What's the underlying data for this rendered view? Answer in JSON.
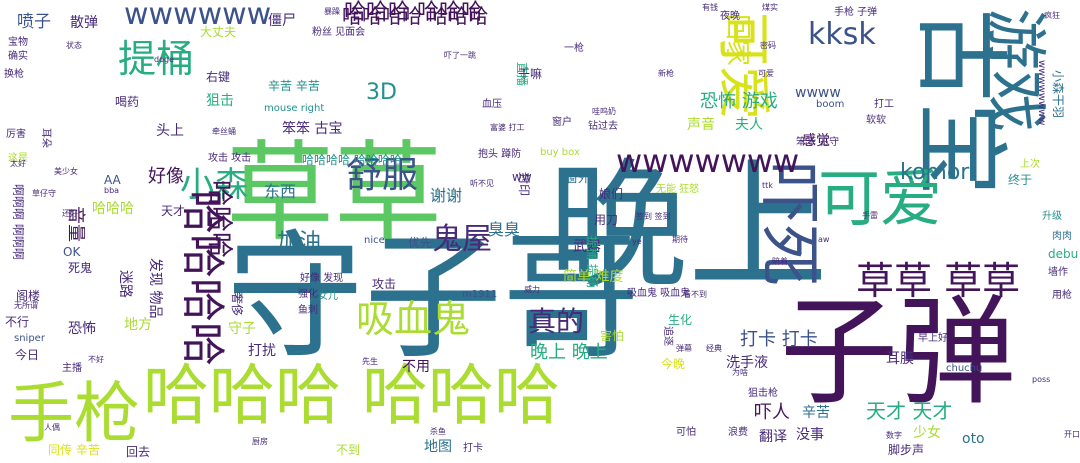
{
  "palette": {
    "dark_purple": "#44145a",
    "indigo": "#472a7a",
    "slate_blue": "#3b528b",
    "steel_blue": "#2c728e",
    "teal": "#21918c",
    "sea_green": "#27ad81",
    "green": "#5cc863",
    "lime": "#aadc32",
    "yellow": "#d8e219",
    "gold": "#fde725"
  },
  "words": [
    {
      "text": "晚上",
      "color": "#2c728e"
    },
    {
      "text": "守子哥",
      "color": "#2c728e"
    },
    {
      "text": "草草",
      "color": "#5cc863"
    },
    {
      "text": "子弹",
      "color": "#44145a"
    },
    {
      "text": "哈哈哈 哈哈哈",
      "color": "#aadc32"
    },
    {
      "text": "手枪",
      "color": "#aadc32"
    },
    {
      "text": "古宝",
      "color": "#2c728e"
    },
    {
      "text": "游戏",
      "color": "#2c728e"
    },
    {
      "text": "可爱",
      "color": "#27ad81"
    },
    {
      "text": "吓死",
      "color": "#3b528b"
    },
    {
      "text": "草草 草草",
      "color": "#44145a"
    },
    {
      "text": "吸血鬼",
      "color": "#aadc32"
    },
    {
      "text": "舒服",
      "color": "#3b528b"
    },
    {
      "text": "提桶",
      "color": "#27ad81"
    },
    {
      "text": "小森",
      "color": "#27ad81"
    },
    {
      "text": "wwwwww",
      "color": "#3b528b"
    },
    {
      "text": "鬼屋",
      "color": "#472a7a"
    },
    {
      "text": "可爱",
      "color": "#d8e219"
    },
    {
      "text": "哈哈哈 哈哈哈",
      "color": "#44145a"
    },
    {
      "text": "kksk",
      "color": "#3b528b"
    },
    {
      "text": "哈哈哈",
      "color": "#44145a"
    },
    {
      "text": "真的",
      "color": "#472a7a"
    },
    {
      "text": "哈哈哈哈 哈哈哈",
      "color": "#44145a"
    },
    {
      "text": "komori",
      "color": "#2c728e"
    },
    {
      "text": "恐怖 游戏",
      "color": "#27ad81"
    },
    {
      "text": "吓人",
      "color": "#44145a"
    },
    {
      "text": "天才 天才",
      "color": "#27ad81"
    },
    {
      "text": "晚上 晚上",
      "color": "#27ad81"
    },
    {
      "text": "打卡 打卡",
      "color": "#3b528b"
    },
    {
      "text": "辛苦 辛苦",
      "color": "#21918c"
    },
    {
      "text": "3D",
      "color": "#21918c"
    },
    {
      "text": "加油",
      "color": "#2c728e"
    },
    {
      "text": "喷子",
      "color": "#3b528b"
    },
    {
      "text": "散弹",
      "color": "#472a7a"
    },
    {
      "text": "僵尸",
      "color": "#472a7a"
    },
    {
      "text": "好像",
      "color": "#44145a"
    },
    {
      "text": "东西",
      "color": "#2c728e"
    },
    {
      "text": "谢谢",
      "color": "#2c728e"
    },
    {
      "text": "臭臭",
      "color": "#2c728e"
    },
    {
      "text": "音量",
      "color": "#44145a"
    },
    {
      "text": "狙击",
      "color": "#27ad81"
    },
    {
      "text": "头上",
      "color": "#472a7a"
    },
    {
      "text": "笨笨 古宝",
      "color": "#472a7a"
    },
    {
      "text": "感觉",
      "color": "#44145a"
    },
    {
      "text": "夫人",
      "color": "#27ad81"
    },
    {
      "text": "声音",
      "color": "#aadc32"
    },
    {
      "text": "武器",
      "color": "#472a7a"
    },
    {
      "text": "简单 难度",
      "color": "#aadc32"
    },
    {
      "text": "不用",
      "color": "#44145a"
    },
    {
      "text": "洗手液",
      "color": "#472a7a"
    },
    {
      "text": "耳膜",
      "color": "#472a7a"
    },
    {
      "text": "少女",
      "color": "#aadc32"
    },
    {
      "text": "oto",
      "color": "#2c728e"
    },
    {
      "text": "辛苦",
      "color": "#2c728e"
    },
    {
      "text": "翻译",
      "color": "#472a7a"
    },
    {
      "text": "没事",
      "color": "#472a7a"
    },
    {
      "text": "终于",
      "color": "#21918c"
    },
    {
      "text": "上次",
      "color": "#aadc32"
    },
    {
      "text": "升级",
      "color": "#21918c"
    },
    {
      "text": "肉肉",
      "color": "#2c728e"
    },
    {
      "text": "debu",
      "color": "#27ad81"
    },
    {
      "text": "墙作",
      "color": "#472a7a"
    },
    {
      "text": "用枪",
      "color": "#472a7a"
    },
    {
      "text": "地方",
      "color": "#aadc32"
    },
    {
      "text": "守子",
      "color": "#aadc32"
    },
    {
      "text": "打扰",
      "color": "#472a7a"
    },
    {
      "text": "恐怖",
      "color": "#472a7a"
    },
    {
      "text": "不行",
      "color": "#472a7a"
    },
    {
      "text": "今日",
      "color": "#472a7a"
    },
    {
      "text": "sniper",
      "color": "#3b528b"
    },
    {
      "text": "主播",
      "color": "#472a7a"
    },
    {
      "text": "同传 辛苦",
      "color": "#d8e219"
    },
    {
      "text": "回去",
      "color": "#472a7a"
    },
    {
      "text": "地图",
      "color": "#2c728e"
    },
    {
      "text": "不到",
      "color": "#aadc32"
    },
    {
      "text": "打卡",
      "color": "#472a7a"
    },
    {
      "text": "脚步声",
      "color": "#472a7a"
    },
    {
      "text": "天才",
      "color": "#472a7a"
    },
    {
      "text": "AA",
      "color": "#3b528b"
    },
    {
      "text": "哈哈哈",
      "color": "#aadc32"
    },
    {
      "text": "OK",
      "color": "#3b528b"
    },
    {
      "text": "死鬼",
      "color": "#472a7a"
    },
    {
      "text": "阁楼",
      "color": "#472a7a"
    },
    {
      "text": "迷路",
      "color": "#472a7a"
    },
    {
      "text": "发现 物品",
      "color": "#472a7a"
    },
    {
      "text": "优先",
      "color": "#3b528b"
    },
    {
      "text": "窗外",
      "color": "#2c728e"
    },
    {
      "text": "攻击",
      "color": "#472a7a"
    },
    {
      "text": "女儿",
      "color": "#21918c"
    },
    {
      "text": "生化",
      "color": "#27ad81"
    },
    {
      "text": "害怕",
      "color": "#aadc32"
    },
    {
      "text": "今晚",
      "color": "#d8e219"
    },
    {
      "text": "狙击枪",
      "color": "#472a7a"
    },
    {
      "text": "喝药",
      "color": "#472a7a"
    },
    {
      "text": "右键",
      "color": "#472a7a"
    },
    {
      "text": "大丈夫",
      "color": "#aadc32"
    },
    {
      "text": "粉丝 见面会",
      "color": "#472a7a"
    },
    {
      "text": "回家",
      "color": "#d8e219"
    },
    {
      "text": "直播",
      "color": "#27ad81"
    },
    {
      "text": "血压",
      "color": "#472a7a"
    },
    {
      "text": "wwww",
      "color": "#3b528b"
    },
    {
      "text": "ww",
      "color": "#472a7a"
    },
    {
      "text": "吸血鬼 吸血鬼",
      "color": "#472a7a"
    },
    {
      "text": "提桶 提桶",
      "color": "#27ad81"
    },
    {
      "text": "用刀",
      "color": "#472a7a"
    },
    {
      "text": "娘们",
      "color": "#472a7a"
    },
    {
      "text": "钻过去",
      "color": "#472a7a"
    },
    {
      "text": "抱头 蹲防",
      "color": "#472a7a"
    },
    {
      "text": "宝物",
      "color": "#472a7a"
    },
    {
      "text": "确实",
      "color": "#472a7a"
    },
    {
      "text": "换枪",
      "color": "#472a7a"
    },
    {
      "text": "厉害",
      "color": "#472a7a"
    },
    {
      "text": "耳朵",
      "color": "#472a7a"
    },
    {
      "text": "这是",
      "color": "#aadc32"
    },
    {
      "text": "啊啊啊 啊啊啊",
      "color": "#472a7a"
    },
    {
      "text": "mouse right",
      "color": "#21918c"
    },
    {
      "text": "攻击 攻击",
      "color": "#472a7a"
    },
    {
      "text": "哈哈哈哈 哈哈哈哈",
      "color": "#21918c"
    },
    {
      "text": "打工",
      "color": "#472a7a"
    },
    {
      "text": "软软",
      "color": "#472a7a"
    },
    {
      "text": "早上好",
      "color": "#472a7a"
    },
    {
      "text": "可怕",
      "color": "#472a7a"
    },
    {
      "text": "浪费",
      "color": "#472a7a"
    },
    {
      "text": "强化",
      "color": "#472a7a"
    },
    {
      "text": "鱼刺",
      "color": "#472a7a"
    },
    {
      "text": "干嘛",
      "color": "#472a7a"
    },
    {
      "text": "窗户",
      "color": "#472a7a"
    },
    {
      "text": "一枪",
      "color": "#472a7a"
    },
    {
      "text": "夜晚",
      "color": "#472a7a"
    },
    {
      "text": "m1911",
      "color": "#3b528b"
    },
    {
      "text": "chuchu",
      "color": "#3b528b"
    },
    {
      "text": "boom",
      "color": "#3b528b"
    },
    {
      "text": "nice",
      "color": "#3b528b"
    },
    {
      "text": "wwwwwwww",
      "color": "#472a7a"
    },
    {
      "text": "小森干羽",
      "color": "#2c728e"
    },
    {
      "text": "手枪 子弹",
      "color": "#472a7a"
    },
    {
      "text": "笨笨 古守",
      "color": "#472a7a"
    },
    {
      "text": "有钱",
      "color": "#472a7a"
    },
    {
      "text": "煤实",
      "color": "#472a7a"
    },
    {
      "text": "疯狂",
      "color": "#472a7a"
    },
    {
      "text": "暴躁",
      "color": "#472a7a"
    },
    {
      "text": "doge",
      "color": "#472a7a"
    },
    {
      "text": "吓了一跳",
      "color": "#472a7a"
    },
    {
      "text": "哇呜奶",
      "color": "#472a7a"
    },
    {
      "text": "新枪",
      "color": "#472a7a"
    },
    {
      "text": "可爱",
      "color": "#472a7a"
    },
    {
      "text": "密码",
      "color": "#472a7a"
    },
    {
      "text": "无能 狂怒",
      "color": "#aadc32"
    },
    {
      "text": "签到 签到",
      "color": "#472a7a"
    },
    {
      "text": "期待",
      "color": "#472a7a"
    },
    {
      "text": "威力",
      "color": "#472a7a"
    },
    {
      "text": "看不到",
      "color": "#472a7a"
    },
    {
      "text": "弹幕",
      "color": "#472a7a"
    },
    {
      "text": "经典",
      "color": "#472a7a"
    },
    {
      "text": "为啥",
      "color": "#472a7a"
    },
    {
      "text": "数字",
      "color": "#472a7a"
    },
    {
      "text": "开口",
      "color": "#472a7a"
    },
    {
      "text": "buy box",
      "color": "#aadc32"
    },
    {
      "text": "bba",
      "color": "#472a7a"
    },
    {
      "text": "听不见",
      "color": "#472a7a"
    },
    {
      "text": "富婆 打工",
      "color": "#472a7a"
    },
    {
      "text": "牵丝蛹",
      "color": "#472a7a"
    },
    {
      "text": "状态",
      "color": "#472a7a"
    },
    {
      "text": "人偶",
      "color": "#472a7a"
    },
    {
      "text": "不好",
      "color": "#472a7a"
    },
    {
      "text": "先生",
      "color": "#472a7a"
    },
    {
      "text": "无所谓",
      "color": "#472a7a"
    },
    {
      "text": "还好",
      "color": "#472a7a"
    },
    {
      "text": "太好",
      "color": "#472a7a"
    },
    {
      "text": "美少女",
      "color": "#472a7a"
    },
    {
      "text": "草仔守",
      "color": "#472a7a"
    },
    {
      "text": "封印",
      "color": "#472a7a"
    },
    {
      "text": "追逐",
      "color": "#472a7a"
    },
    {
      "text": "厨房",
      "color": "#472a7a"
    },
    {
      "text": "杀鱼",
      "color": "#472a7a"
    },
    {
      "text": "ttk",
      "color": "#472a7a"
    },
    {
      "text": "ye",
      "color": "#472a7a"
    },
    {
      "text": "poss",
      "color": "#472a7a"
    },
    {
      "text": "陪着",
      "color": "#472a7a"
    },
    {
      "text": "aw",
      "color": "#472a7a"
    },
    {
      "text": "手雷",
      "color": "#472a7a"
    },
    {
      "text": "好像 发现",
      "color": "#472a7a"
    },
    {
      "text": "奢侈",
      "color": "#472a7a"
    },
    {
      "text": "哈哈哈哈",
      "color": "#44145a"
    },
    {
      "text": "wwwwwww",
      "color": "#44145a"
    }
  ]
}
